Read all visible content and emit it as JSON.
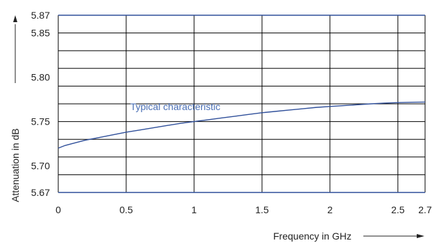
{
  "chart_data": {
    "type": "line",
    "xlabel": "Frequency in GHz",
    "ylabel": "Attenuation in dB",
    "xlim": [
      0,
      2.7
    ],
    "ylim": [
      5.67,
      5.87
    ],
    "x_ticks": [
      0,
      0.5,
      1,
      1.5,
      2,
      2.5,
      2.7
    ],
    "x_tick_labels": [
      "0",
      "0.5",
      "1",
      "1.5",
      "2",
      "2.5",
      "2.7"
    ],
    "y_ticks": [
      5.67,
      5.7,
      5.75,
      5.8,
      5.85,
      5.87
    ],
    "y_tick_labels": [
      "5.67",
      "5.70",
      "5.75",
      "5.80",
      "5.85",
      "5.87"
    ],
    "y_grid": [
      5.67,
      5.69,
      5.71,
      5.73,
      5.75,
      5.77,
      5.79,
      5.81,
      5.83,
      5.85,
      5.87
    ],
    "x_grid": [
      0,
      0.5,
      1,
      1.5,
      2,
      2.5,
      2.7
    ],
    "grid": true,
    "series": [
      {
        "x": [
          0,
          0.05,
          0.1,
          0.2,
          0.3,
          0.4,
          0.5,
          0.6,
          0.7,
          0.8,
          0.9,
          1.0,
          1.1,
          1.2,
          1.3,
          1.4,
          1.5,
          1.6,
          1.7,
          1.8,
          1.9,
          2.0,
          2.1,
          2.2,
          2.3,
          2.4,
          2.5,
          2.6,
          2.7
        ],
        "y": [
          5.72,
          5.723,
          5.725,
          5.729,
          5.732,
          5.735,
          5.738,
          5.7405,
          5.743,
          5.7455,
          5.748,
          5.75,
          5.752,
          5.754,
          5.756,
          5.758,
          5.76,
          5.7615,
          5.763,
          5.7645,
          5.766,
          5.767,
          5.768,
          5.769,
          5.77,
          5.7708,
          5.7714,
          5.7718,
          5.772
        ]
      }
    ],
    "annotations": [
      {
        "text": "Typical characteristic",
        "x": 0.53,
        "y": 5.763
      }
    ],
    "colors": {
      "curve": "#2f4f9a",
      "annotation": "#4a6fb5",
      "boundary": "#2f4f9a",
      "grid": "#000000"
    }
  }
}
